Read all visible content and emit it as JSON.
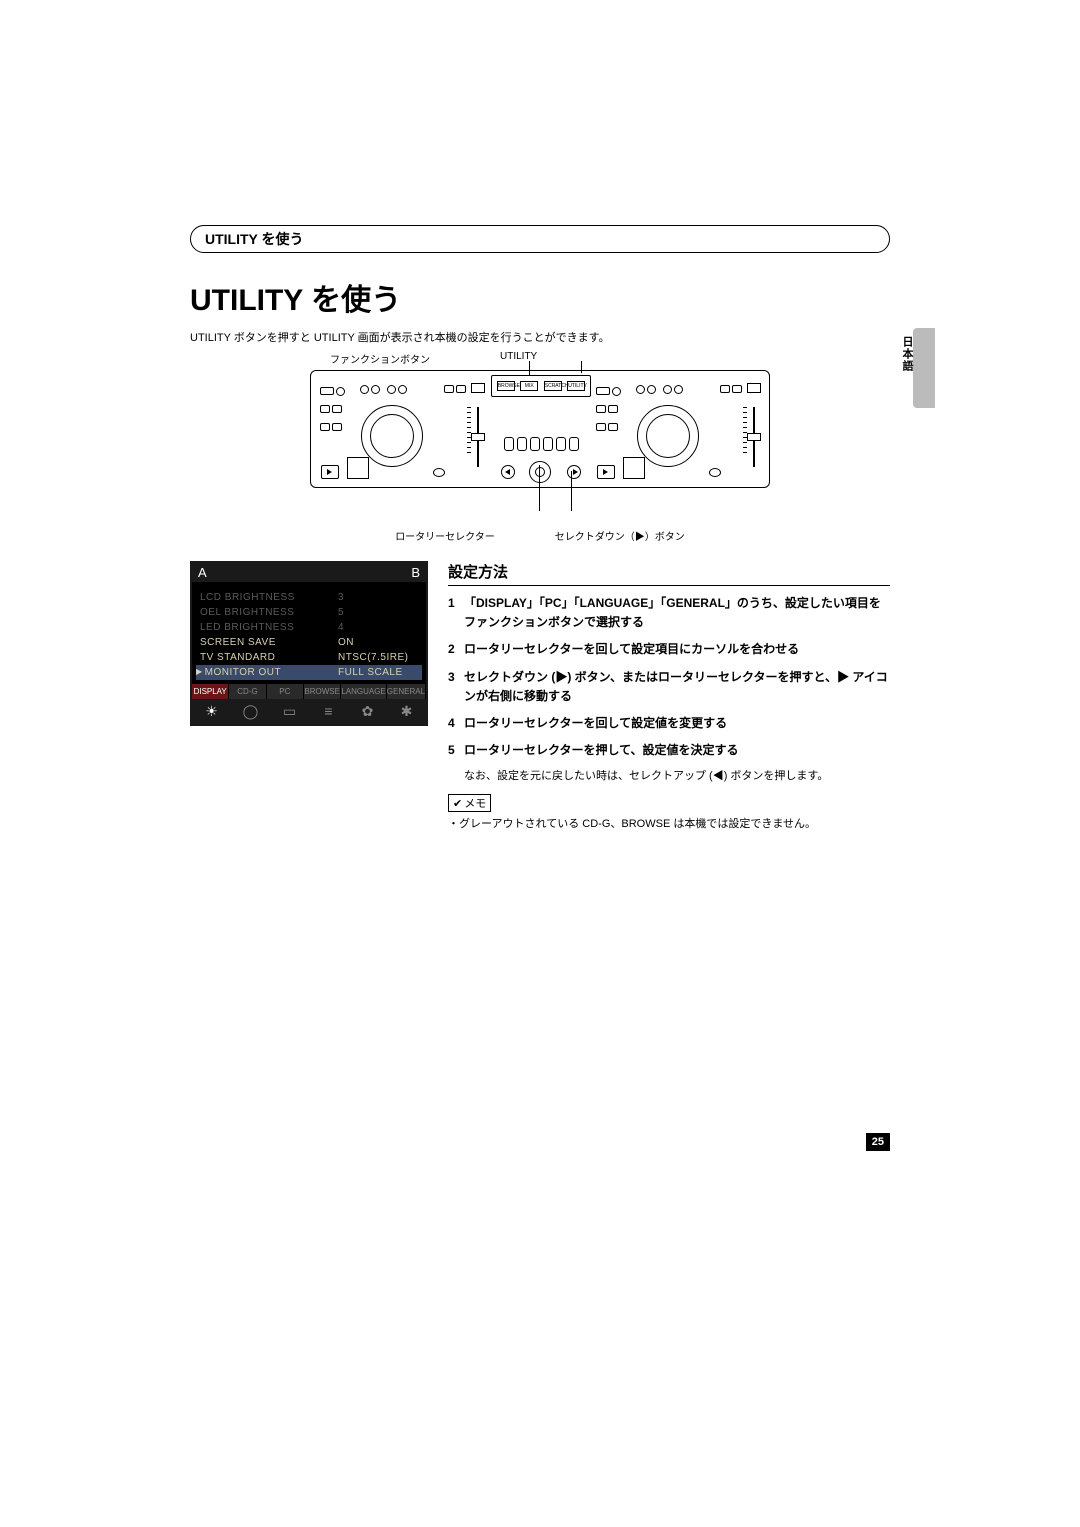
{
  "header": {
    "section_title": "UTILITY を使う"
  },
  "title": "UTILITY を使う",
  "intro": "UTILITY ボタンを押すと UTILITY 画面が表示され本機の設定を行うことができます。",
  "diagram": {
    "label_func": "ファンクションボタン",
    "label_utility": "UTILITY",
    "label_rotary": "ロータリーセレクター",
    "label_select_down": "セレクトダウン（▶）ボタン",
    "lcd_btns": [
      "BROWSE",
      "MIX",
      "SCRATCH",
      "UTILITY"
    ]
  },
  "screenshot": {
    "deck_a": "A",
    "deck_b": "B",
    "rows": [
      {
        "k": "LCD BRIGHTNESS",
        "v": "3",
        "dim": true
      },
      {
        "k": "OEL BRIGHTNESS",
        "v": "5",
        "dim": true
      },
      {
        "k": "LED BRIGHTNESS",
        "v": "4",
        "dim": true
      },
      {
        "k": "SCREEN SAVE",
        "v": "ON",
        "dim": false
      },
      {
        "k": "TV STANDARD",
        "v": "NTSC(7.5IRE)",
        "dim": false
      },
      {
        "k": "MONITOR OUT",
        "v": "FULL SCALE",
        "dim": false,
        "sel": true
      }
    ],
    "tabs": [
      "DISPLAY",
      "CD-G",
      "PC",
      "BROWSE",
      "LANGUAGE",
      "GENERAL"
    ],
    "active_tab": 0,
    "icons": [
      "☀",
      "◯",
      "▭",
      "≡",
      "✿",
      "✱"
    ]
  },
  "instructions": {
    "heading": "設定方法",
    "steps": [
      {
        "n": "1",
        "bold": true,
        "txt": "「DISPLAY」「PC」「LANGUAGE」「GENERAL」のうち、設定したい項目をファンクションボタンで選択する"
      },
      {
        "n": "2",
        "bold": true,
        "txt": "ロータリーセレクターを回して設定項目にカーソルを合わせる"
      },
      {
        "n": "3",
        "bold": true,
        "txt": "セレクトダウン (▶) ボタン、またはロータリーセレクターを押すと、▶ アイコンが右側に移動する"
      },
      {
        "n": "4",
        "bold": true,
        "txt": "ロータリーセレクターを回して設定値を変更する"
      },
      {
        "n": "5",
        "bold": true,
        "txt": "ロータリーセレクターを押して、設定値を決定する"
      }
    ],
    "step5_note": "なお、設定を元に戻したい時は、セレクトアップ (◀) ボタンを押します。",
    "memo_label": "メモ",
    "memo_text": "グレーアウトされている CD-G、BROWSE は本機では設定できません。"
  },
  "sidebar_label": "日本語",
  "page_number": "25"
}
